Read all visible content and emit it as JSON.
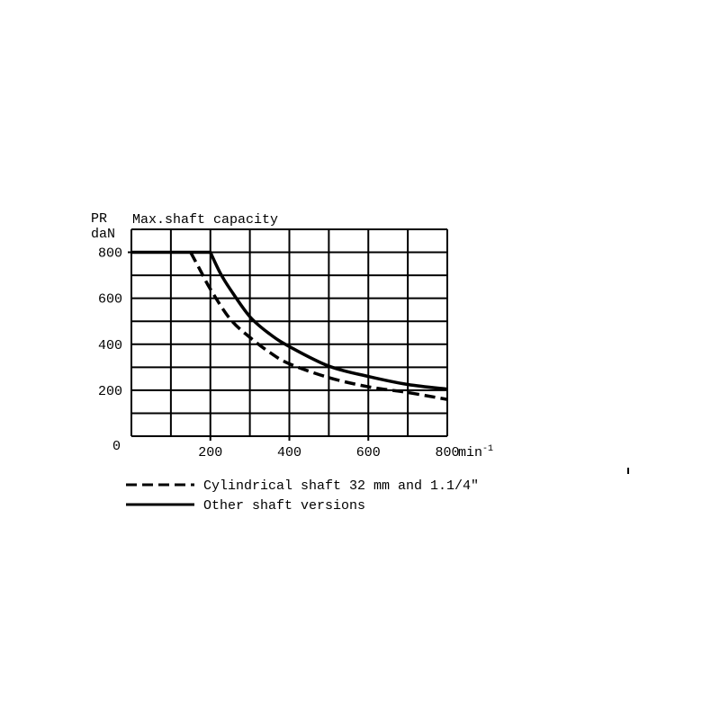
{
  "chart_data": {
    "type": "line",
    "title": "Max.shaft capacity",
    "ylabel": [
      "PR",
      "daN"
    ],
    "xlabel_unit": "min",
    "xlabel_unit_exp": "-1",
    "xlim": [
      0,
      800
    ],
    "ylim": [
      0,
      900
    ],
    "grid": true,
    "x_ticks": [
      200,
      400,
      600,
      800
    ],
    "y_ticks": [
      200,
      400,
      600,
      800
    ],
    "origin_label": "0",
    "legend_position": "bottom",
    "series": [
      {
        "name": "Cylindrical shaft 32 mm and 1.1/4\"",
        "style": "dashed",
        "color": "#000000",
        "x": [
          150,
          175,
          200,
          250,
          300,
          350,
          400,
          500,
          600,
          700,
          800
        ],
        "y": [
          800,
          720,
          640,
          510,
          430,
          365,
          315,
          255,
          215,
          190,
          160
        ]
      },
      {
        "name": "Other shaft versions",
        "style": "solid",
        "color": "#000000",
        "x": [
          0,
          200,
          225,
          250,
          300,
          350,
          400,
          500,
          600,
          700,
          800
        ],
        "y": [
          800,
          800,
          710,
          640,
          520,
          445,
          390,
          305,
          260,
          225,
          205
        ]
      }
    ]
  }
}
